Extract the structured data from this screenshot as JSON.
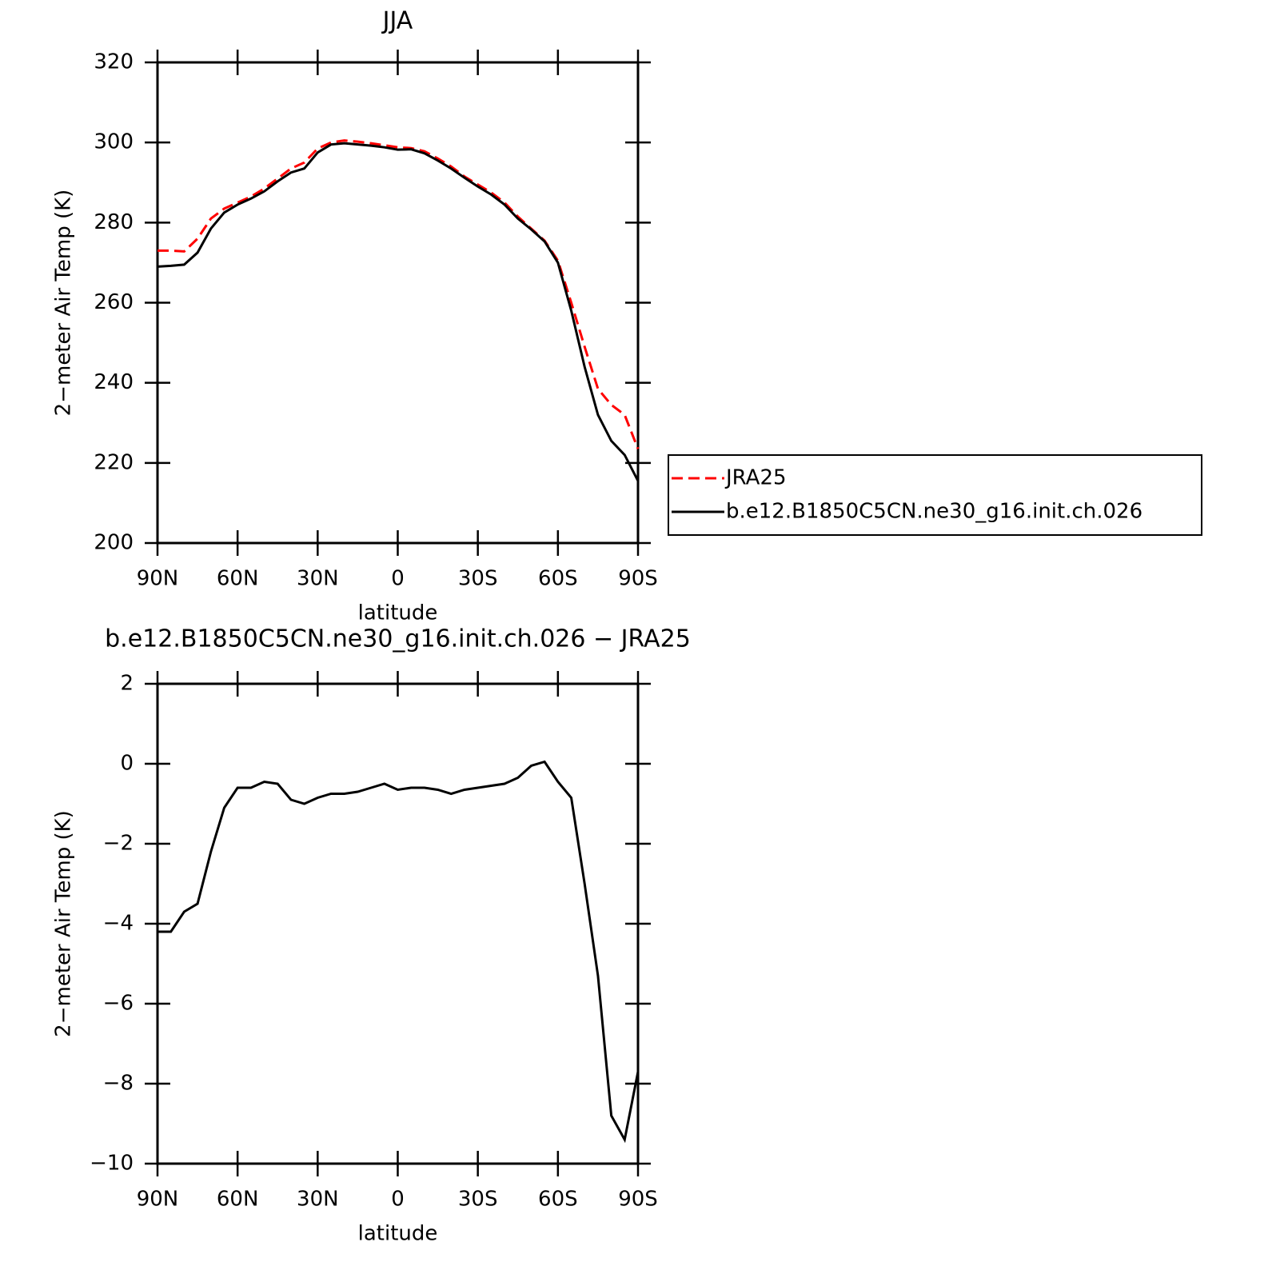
{
  "chart_data": [
    {
      "type": "line",
      "title": "JJA",
      "xlabel": "latitude",
      "ylabel": "2−meter Air Temp (K)",
      "x": [
        90,
        85,
        80,
        75,
        70,
        65,
        60,
        55,
        50,
        45,
        40,
        35,
        30,
        25,
        20,
        15,
        10,
        5,
        0,
        -5,
        -10,
        -15,
        -20,
        -25,
        -30,
        -35,
        -40,
        -45,
        -50,
        -55,
        -60,
        -65,
        -70,
        -75,
        -80,
        -85,
        -90
      ],
      "series": [
        {
          "name": "JRA25",
          "color": "#ff0000",
          "linestyle": "dashed",
          "values": [
            273,
            273,
            272.8,
            276,
            281,
            283.5,
            285,
            286.5,
            288.5,
            291,
            293.5,
            295,
            298.5,
            300,
            300.5,
            300.2,
            299.8,
            299.3,
            298.8,
            298.6,
            297.8,
            296,
            294,
            291.5,
            289.5,
            287.5,
            285,
            281.5,
            278.5,
            275.5,
            270.5,
            260,
            249,
            238.5,
            234.5,
            232,
            223.5
          ]
        },
        {
          "name": "b.e12.B1850C5CN.ne30_g16.init.ch.026",
          "color": "#000000",
          "linestyle": "solid",
          "values": [
            269,
            269.2,
            269.5,
            272.5,
            278.5,
            282.5,
            284.5,
            286,
            287.8,
            290.3,
            292.5,
            293.5,
            297.5,
            299.5,
            299.8,
            299.5,
            299.2,
            298.8,
            298.2,
            298.3,
            297.3,
            295.5,
            293.5,
            291.2,
            289,
            287,
            284.5,
            281,
            278.3,
            275.3,
            270,
            258,
            244,
            232,
            225.5,
            222,
            215.5
          ]
        }
      ],
      "xlim": [
        90,
        -90
      ],
      "xticks": [
        {
          "value": 90,
          "label": "90N"
        },
        {
          "value": 60,
          "label": "60N"
        },
        {
          "value": 30,
          "label": "30N"
        },
        0,
        {
          "value": -30,
          "label": "30S"
        },
        {
          "value": -60,
          "label": "60S"
        },
        {
          "value": -90,
          "label": "90S"
        }
      ],
      "ylim": [
        200,
        320
      ],
      "yticks": [
        200,
        220,
        240,
        260,
        280,
        300,
        320
      ],
      "legend": "right"
    },
    {
      "type": "line",
      "title": "b.e12.B1850C5CN.ne30_g16.init.ch.026 − JRA25",
      "xlabel": "latitude",
      "ylabel": "2−meter Air Temp (K)",
      "x": [
        90,
        85,
        80,
        75,
        70,
        65,
        60,
        55,
        50,
        45,
        40,
        35,
        30,
        25,
        20,
        15,
        10,
        5,
        0,
        -5,
        -10,
        -15,
        -20,
        -25,
        -30,
        -35,
        -40,
        -45,
        -50,
        -55,
        -60,
        -65,
        -70,
        -75,
        -80,
        -85,
        -90
      ],
      "color": "#000000",
      "values": [
        -4.2,
        -4.2,
        -3.7,
        -3.5,
        -2.2,
        -1.1,
        -0.6,
        -0.6,
        -0.45,
        -0.5,
        -0.9,
        -1.0,
        -0.85,
        -0.75,
        -0.75,
        -0.7,
        -0.6,
        -0.5,
        -0.65,
        -0.6,
        -0.6,
        -0.65,
        -0.75,
        -0.65,
        -0.6,
        -0.55,
        -0.5,
        -0.35,
        -0.05,
        0.05,
        -0.45,
        -0.85,
        -3.0,
        -5.3,
        -8.8,
        -9.4,
        -7.7
      ],
      "xlim": [
        90,
        -90
      ],
      "xticks": [
        {
          "value": 90,
          "label": "90N"
        },
        {
          "value": 60,
          "label": "60N"
        },
        {
          "value": 30,
          "label": "30N"
        },
        0,
        {
          "value": -30,
          "label": "30S"
        },
        {
          "value": -60,
          "label": "60S"
        },
        {
          "value": -90,
          "label": "90S"
        }
      ],
      "ylim": [
        -10,
        2
      ],
      "yticks": [
        {
          "value": -10,
          "label": "−10"
        },
        {
          "value": -8,
          "label": "−8"
        },
        {
          "value": -6,
          "label": "−6"
        },
        {
          "value": -4,
          "label": "−4"
        },
        {
          "value": -2,
          "label": "−2"
        },
        0,
        2
      ]
    }
  ]
}
